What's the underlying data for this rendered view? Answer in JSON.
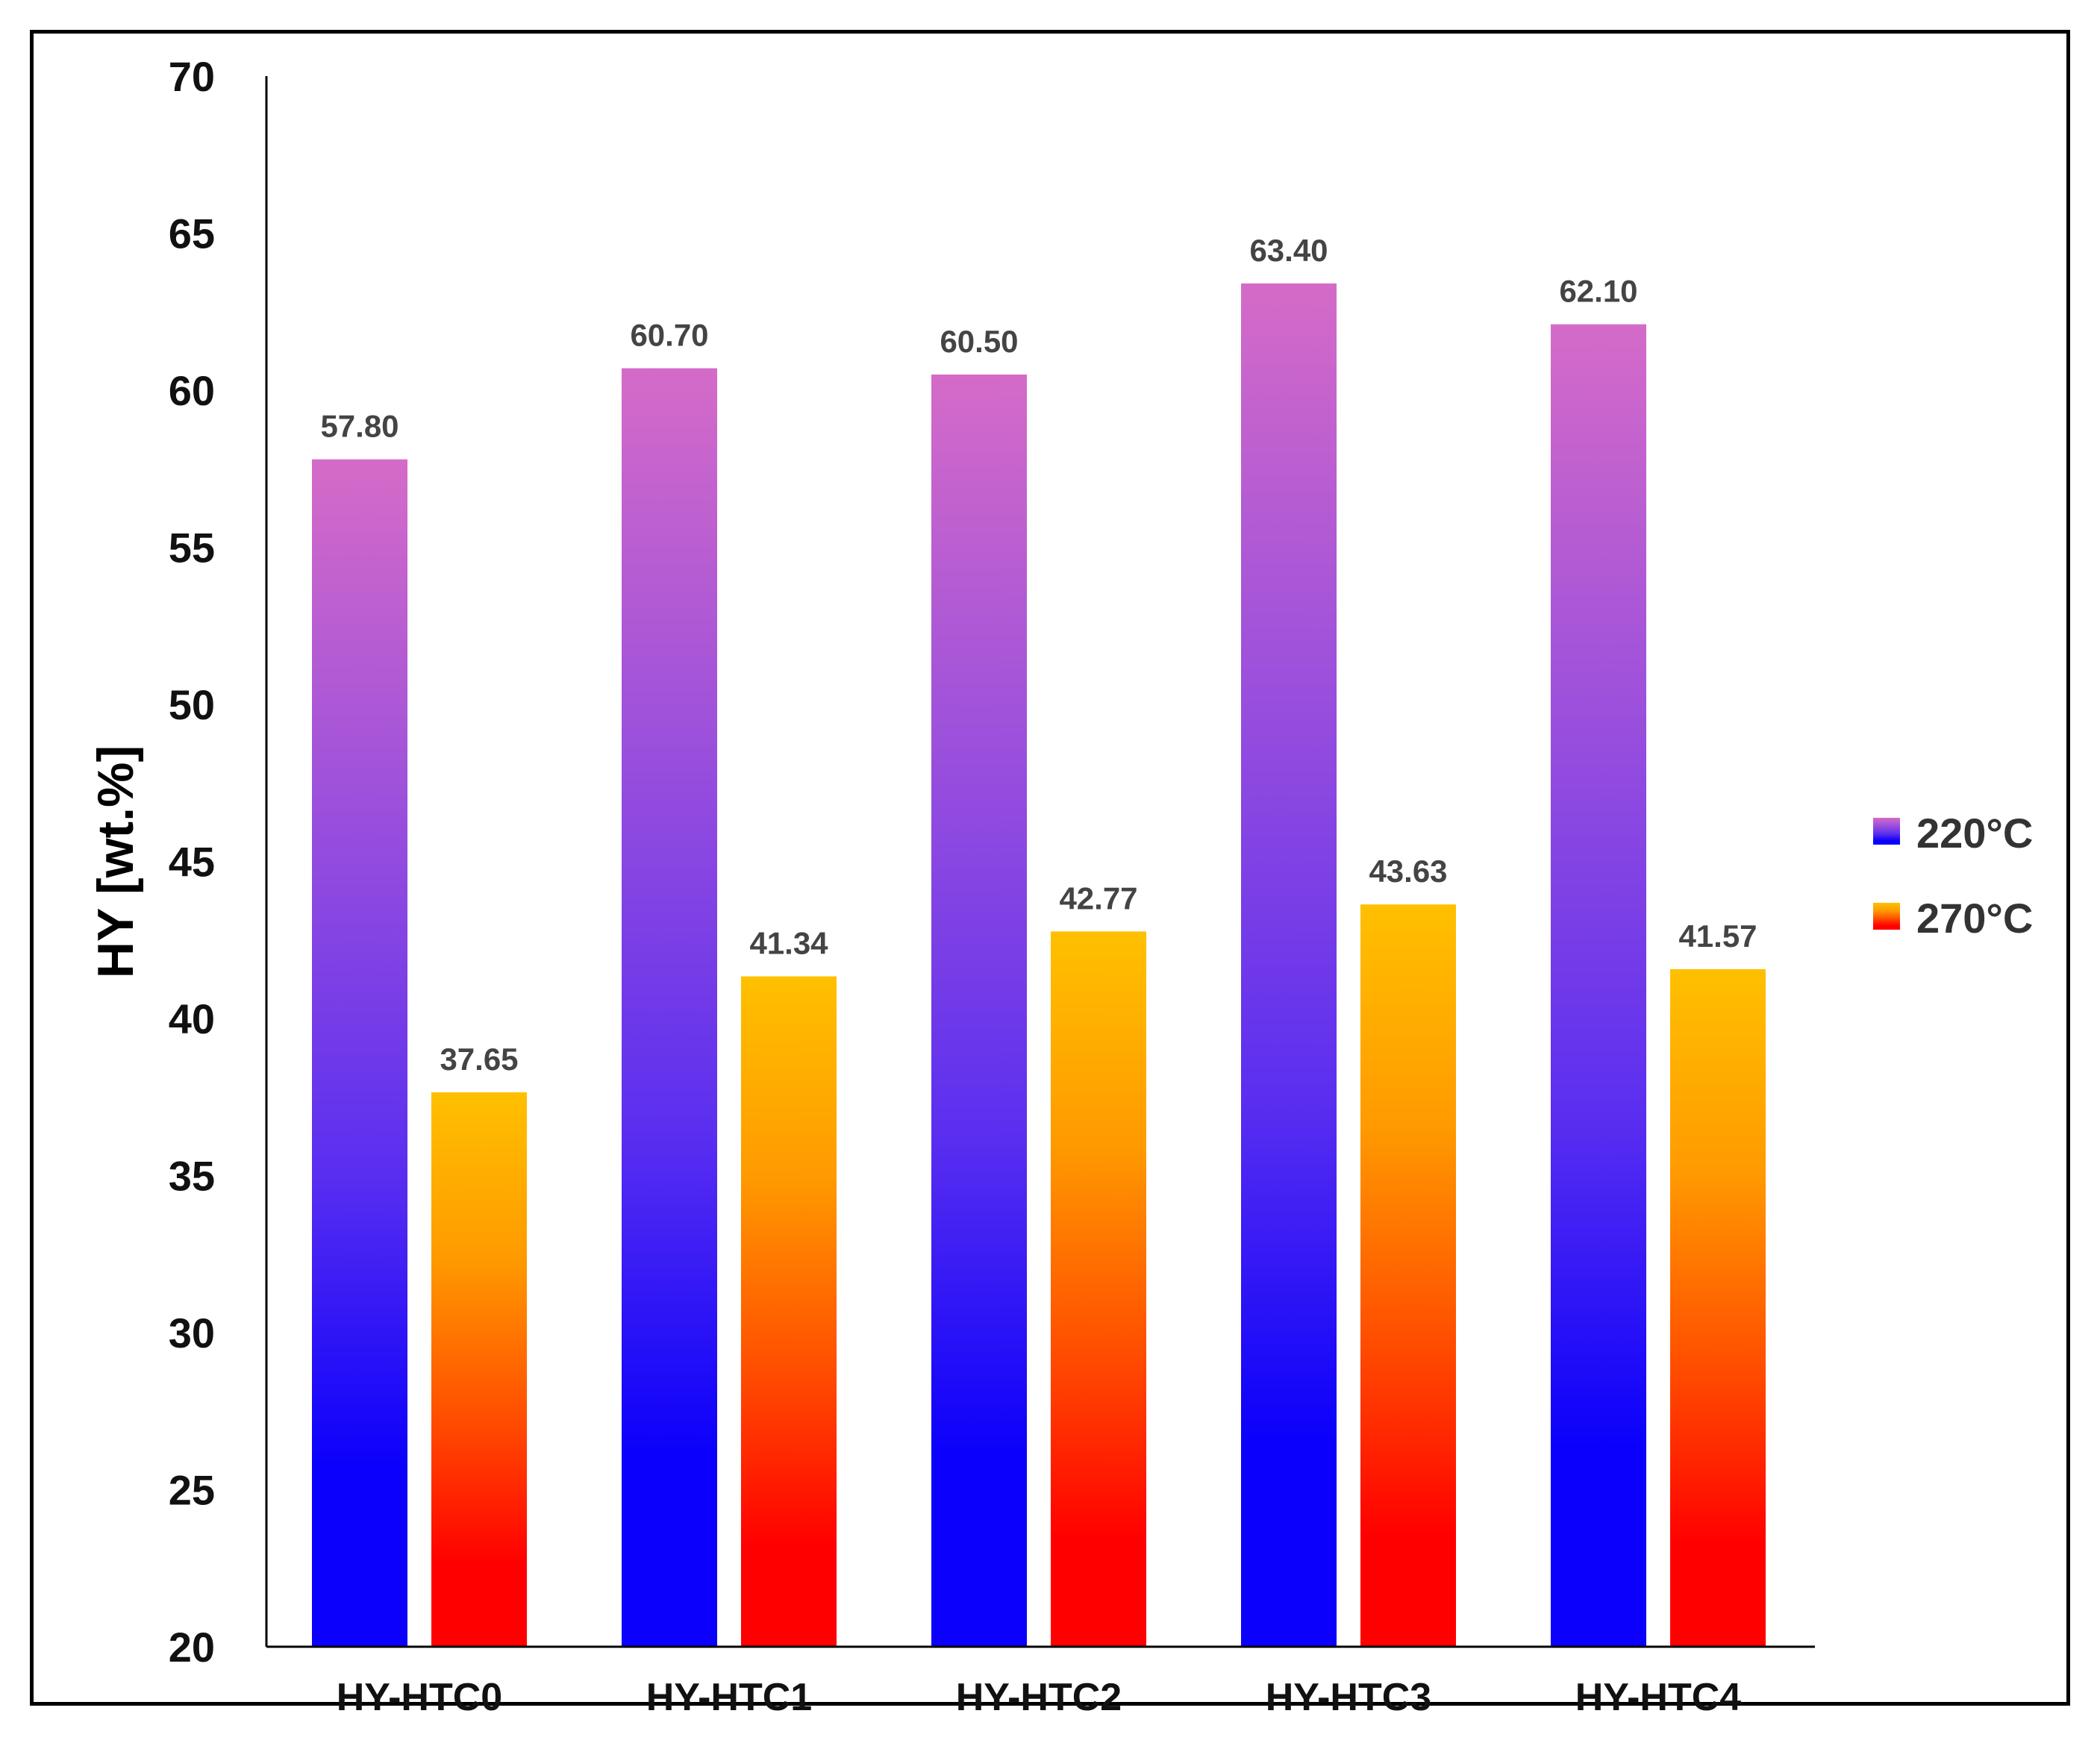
{
  "chart_data": {
    "type": "bar",
    "title": "",
    "xlabel": "",
    "ylabel": "HY [wt.%]",
    "ylim": [
      20,
      70
    ],
    "yticks": [
      20,
      25,
      30,
      35,
      40,
      45,
      50,
      55,
      60,
      65,
      70
    ],
    "grid": false,
    "legend_position": "right",
    "categories": [
      "HY-HTC0",
      "HY-HTC1",
      "HY-HTC2",
      "HY-HTC3",
      "HY-HTC4"
    ],
    "series": [
      {
        "name": "220°C",
        "values": [
          57.8,
          60.7,
          60.5,
          63.4,
          62.1
        ],
        "labels": [
          "57.80",
          "60.70",
          "60.50",
          "63.40",
          "62.10"
        ],
        "gradient": [
          "#d56bc8",
          "#9a4fdc",
          "#5a2ef0",
          "#0a00fb"
        ]
      },
      {
        "name": "270°C",
        "values": [
          37.65,
          41.34,
          42.77,
          43.63,
          41.57
        ],
        "labels": [
          "37.65",
          "41.34",
          "42.77",
          "43.63",
          "41.57"
        ],
        "gradient": [
          "#ffc000",
          "#ff9a00",
          "#ff4a00",
          "#ff0000"
        ]
      }
    ]
  }
}
